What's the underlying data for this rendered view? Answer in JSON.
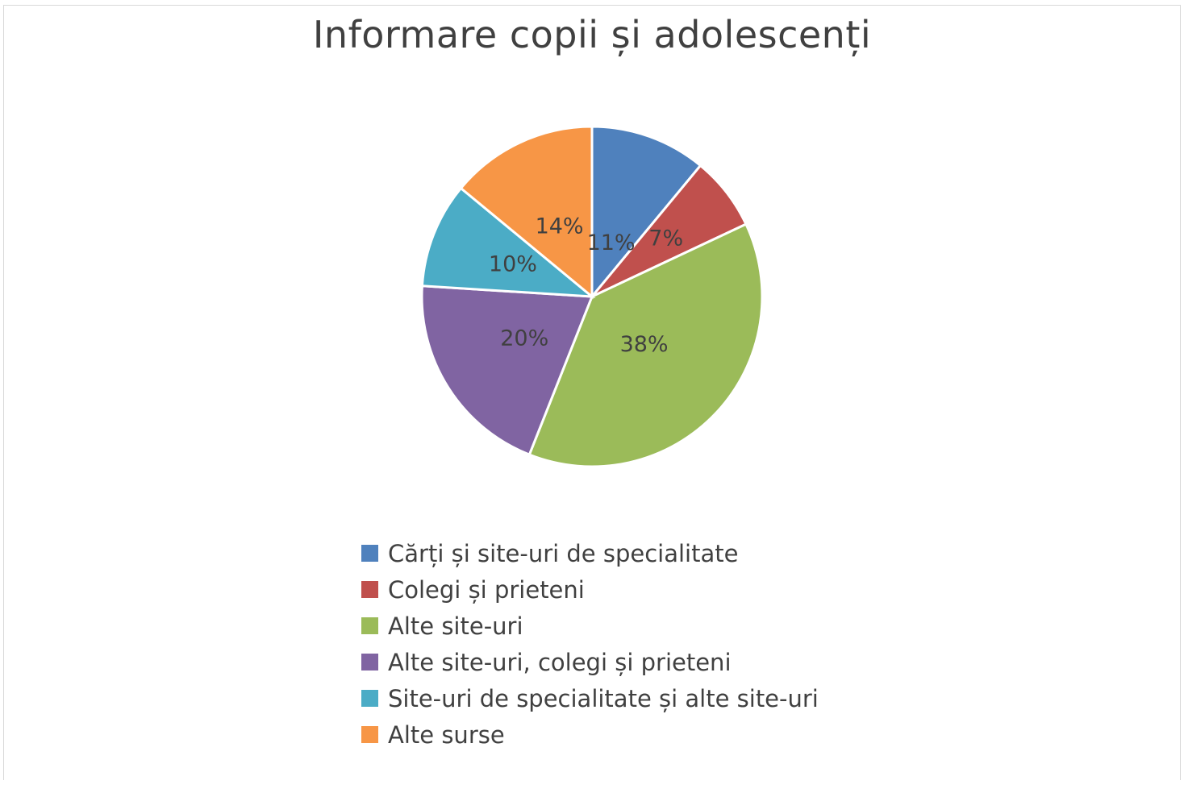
{
  "chart_data": {
    "type": "pie",
    "title": "Informare copii și adolescenți",
    "slices": [
      {
        "name": "Cărți și site-uri de specialitate",
        "value": 11,
        "label": "11%",
        "color": "#4f81bd"
      },
      {
        "name": "Colegi și prieteni",
        "value": 7,
        "label": "7%",
        "color": "#c0504d"
      },
      {
        "name": "Alte site-uri",
        "value": 38,
        "label": "38%",
        "color": "#9bbb59"
      },
      {
        "name": "Alte site-uri, colegi și prieteni",
        "value": 20,
        "label": "20%",
        "color": "#8064a2"
      },
      {
        "name": "Site-uri de specialitate și alte site-uri",
        "value": 10,
        "label": "10%",
        "color": "#4bacc6"
      },
      {
        "name": "Alte surse",
        "value": 14,
        "label": "14%",
        "color": "#f79646"
      }
    ],
    "legend_position": "bottom"
  }
}
